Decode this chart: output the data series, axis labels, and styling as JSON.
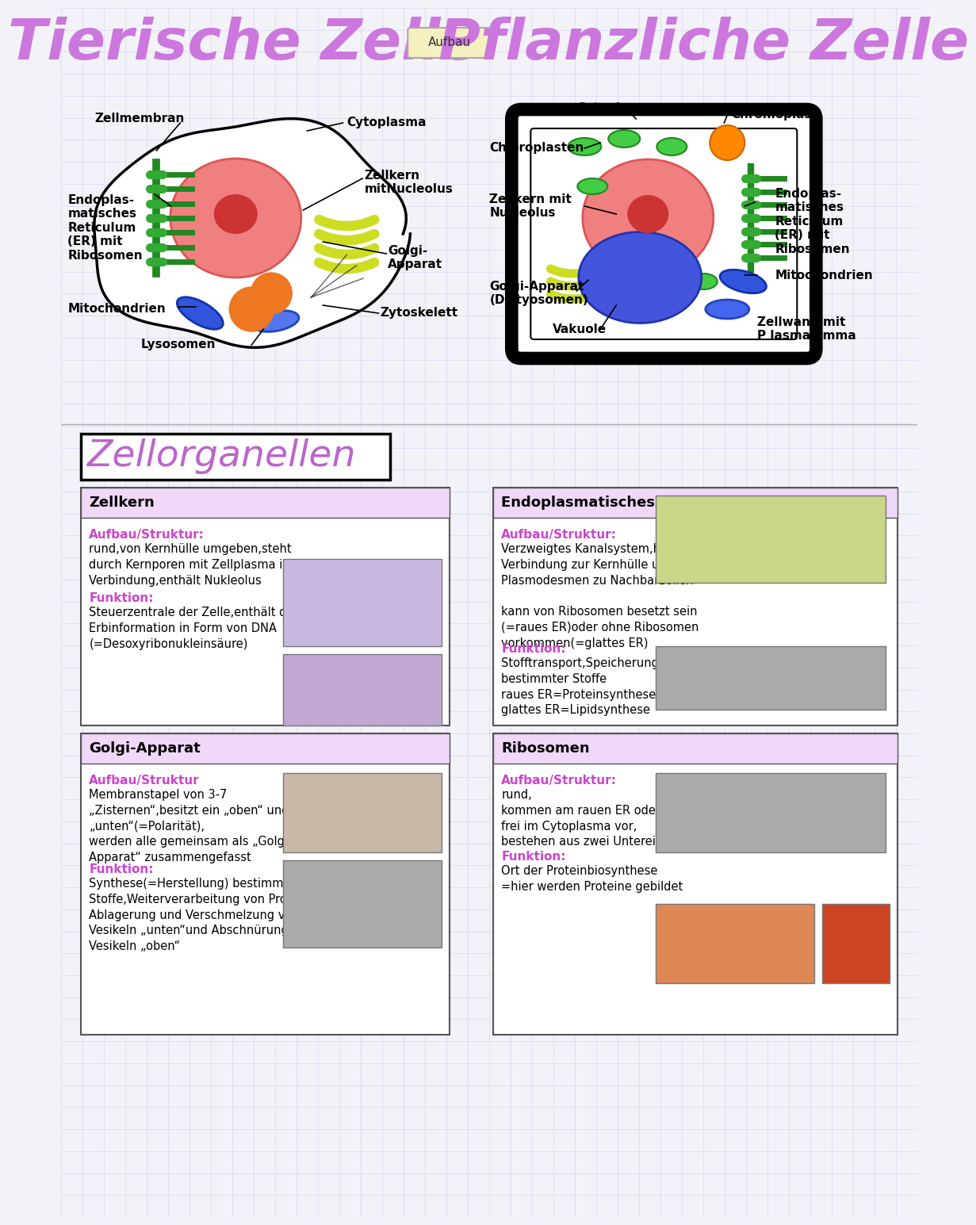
{
  "title_left": "Tierische Zelle",
  "title_right": "Pflanzliche Zelle",
  "title_middle": "Aufbau",
  "title_color": "#cc77dd",
  "bg_color": "#f2f2f8",
  "grid_color": "#d8d8ee",
  "section_title": "Zellorganellen",
  "section_title_color": "#bb66cc",
  "funktion_color": "#cc44cc",
  "aufbau_color": "#cc44cc",
  "header_bg": "#f0d8f8",
  "cards": [
    {
      "title": "Zellkern",
      "col": 0,
      "row": 0,
      "aufbau_label": "Aufbau/Struktur:",
      "aufbau_text": "rund,von Kernhülle umgeben,steht\ndurch Kernporen mit Zellplasma in\nVerbindung,enthält Nukleolus",
      "funktion_label": "Funktion:",
      "funktion_text": "Steuerzentrale der Zelle,enthält die\nErbinformation in Form von DNA\n(=Desoxyribonukleinsäure)"
    },
    {
      "title": "Endoplasmatisches Retikulum",
      "col": 1,
      "row": 0,
      "aufbau_label": "Aufbau/Struktur:",
      "aufbau_text": "Verzweigtes Kanalsystem,hat\nVerbindung zur Kernhülle und über\nPlasmodesmen zu Nachbarzellen\n\nkann von Ribosomen besetzt sein\n(=raues ER)oder ohne Ribosomen\nvorkommen(=glattes ER)",
      "funktion_label": "Funktion:",
      "funktion_text": "Stofftransport,Speicherung\nbestimmter Stoffe\nraues ER=Proteinsynthese\nglattes ER=Lipidsynthese"
    },
    {
      "title": "Golgi-Apparat",
      "col": 0,
      "row": 1,
      "aufbau_label": "Aufbau/Struktur",
      "aufbau_text": "Membranstapel von 3-7\n„Zisternen“,besitzt ein „oben“ und\n„unten“(=Polarität),\nwerden alle gemeinsam als „Golgi-\nApparat“ zusammengefasst",
      "funktion_label": "Funktion:",
      "funktion_text": "Synthese(=Herstellung) bestimmter\nStoffe,Weiterverarbeitung von Proteinen\nAblagerung und Verschmelzung von\nVesikeln „unten“und Abschnürung von\nVesikeln „oben“"
    },
    {
      "title": "Ribosomen",
      "col": 1,
      "row": 1,
      "aufbau_label": "Aufbau/Struktur:",
      "aufbau_text": "rund,\nkommen am rauen ER oder\nfrei im Cytoplasma vor,\nbestehen aus zwei Untereinheiten",
      "funktion_label": "Funktion:",
      "funktion_text": "Ort der Proteinbiosynthese\n=hier werden Proteine gebildet"
    }
  ]
}
